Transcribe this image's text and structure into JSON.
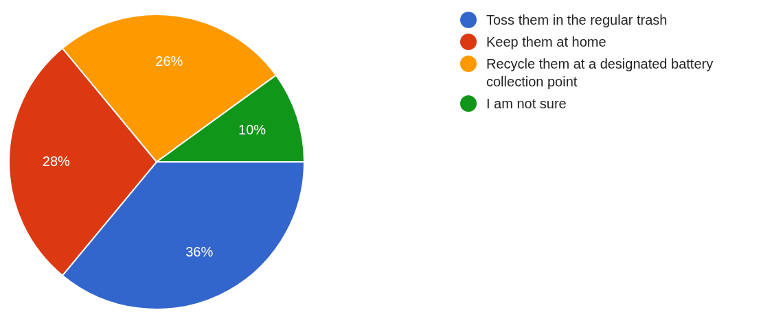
{
  "chart_data": {
    "type": "pie",
    "categories": [
      "Toss them in the regular trash",
      "Keep them at home",
      "Recycle them at a designated battery collection point",
      "I am not sure"
    ],
    "values": [
      36,
      28,
      26,
      10
    ],
    "colors": [
      "#3366cc",
      "#dc3912",
      "#ff9900",
      "#109618"
    ],
    "value_labels": [
      "36%",
      "28%",
      "26%",
      "10%"
    ],
    "legend": "right"
  }
}
